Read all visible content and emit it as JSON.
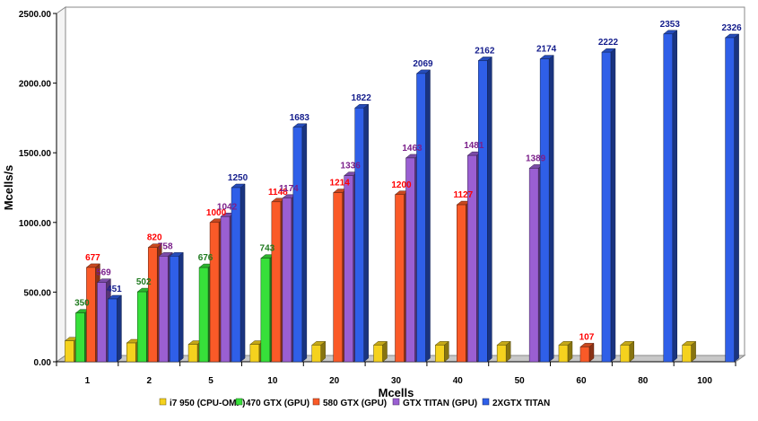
{
  "chart_data": {
    "type": "bar",
    "xlabel": "Mcells",
    "ylabel": "Mcells/s",
    "ylim": [
      0,
      2500
    ],
    "yticks": [
      "0.00",
      "500.00",
      "1000.00",
      "1500.00",
      "2000.00",
      "2500.00"
    ],
    "categories": [
      "1",
      "2",
      "5",
      "10",
      "20",
      "30",
      "40",
      "50",
      "60",
      "80",
      "100"
    ],
    "grid": false,
    "legend_position": "bottom",
    "series": [
      {
        "name": "i7 950 (CPU-OMP)",
        "color": "#f5d21e",
        "label_color": "",
        "values": [
          150,
          135,
          125,
          125,
          120,
          120,
          120,
          120,
          120,
          120,
          120
        ],
        "labels": [
          "",
          "",
          "",
          "",
          "",
          "",
          "",
          "",
          "",
          "",
          ""
        ]
      },
      {
        "name": "470 GTX (GPU)",
        "color": "#37e03a",
        "label_color": "#1f7a1f",
        "values": [
          350,
          502,
          676,
          743,
          null,
          null,
          null,
          null,
          null,
          null,
          null
        ],
        "labels": [
          "350",
          "502",
          "676",
          "743",
          "",
          "",
          "",
          "",
          "",
          "",
          ""
        ]
      },
      {
        "name": "580 GTX (GPU)",
        "color": "#fa5a28",
        "label_color": "#ff0000",
        "values": [
          677,
          820,
          1000,
          1148,
          1214,
          1200,
          1127,
          null,
          107,
          null,
          null
        ],
        "labels": [
          "677",
          "820",
          "1000",
          "1148",
          "1214",
          "1200",
          "1127",
          "",
          "107",
          "",
          ""
        ]
      },
      {
        "name": "GTX TITAN (GPU)",
        "color": "#9a5fd2",
        "label_color": "#7a1f8a",
        "values": [
          569,
          758,
          1042,
          1174,
          1336,
          1463,
          1481,
          1389,
          null,
          null,
          null
        ],
        "labels": [
          "569",
          "758",
          "1042",
          "1174",
          "1336",
          "1463",
          "1481",
          "1389",
          "",
          "",
          ""
        ]
      },
      {
        "name": "2XGTX TITAN",
        "color": "#2f5fe8",
        "label_color": "#141d8c",
        "values": [
          451,
          758,
          1250,
          1683,
          1822,
          2069,
          2162,
          2174,
          2222,
          2353,
          2326
        ],
        "labels": [
          "451",
          "",
          "1250",
          "1683",
          "1822",
          "2069",
          "2162",
          "2174",
          "2222",
          "2353",
          "2326"
        ]
      }
    ]
  }
}
